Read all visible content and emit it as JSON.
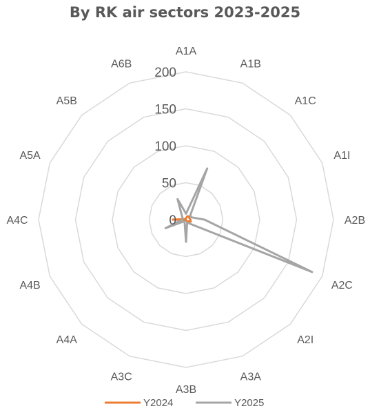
{
  "chart_data": {
    "type": "radar",
    "title": "By RK air sectors 2023-2025",
    "categories": [
      "A1A",
      "A1B",
      "A1C",
      "A1I",
      "A2B",
      "A2C",
      "A2I",
      "A3A",
      "A3B",
      "A3C",
      "A4A",
      "A4B",
      "A4C",
      "A5A",
      "A5B",
      "A6B"
    ],
    "ticks": [
      0,
      50,
      100,
      150,
      200
    ],
    "ylim": [
      0,
      200
    ],
    "gridlines": true,
    "legend_position": "bottom",
    "series": [
      {
        "name": "Y2024",
        "color": "#ED7D31",
        "values": [
          2,
          5,
          6,
          5,
          6,
          7,
          3,
          2,
          1,
          1,
          1,
          1,
          18,
          2,
          1,
          1
        ]
      },
      {
        "name": "Y2025",
        "color": "#A5A5A5",
        "values": [
          8,
          75,
          8,
          8,
          25,
          185,
          8,
          4,
          30,
          5,
          3,
          30,
          5,
          5,
          8,
          30
        ]
      }
    ]
  }
}
